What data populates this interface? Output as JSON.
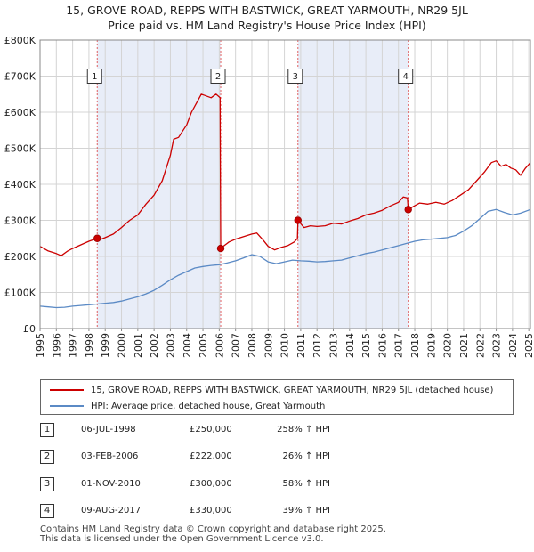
{
  "chart_data": {
    "type": "line",
    "title": "15, GROVE ROAD, REPPS WITH BASTWICK, GREAT YARMOUTH, NR29 5JL",
    "subtitle": "Price paid vs. HM Land Registry's House Price Index (HPI)",
    "xlim": [
      1995.0,
      2025.1
    ],
    "ylim": [
      0,
      800000
    ],
    "x_ticks": [
      1995,
      1996,
      1997,
      1998,
      1999,
      2000,
      2001,
      2002,
      2003,
      2004,
      2005,
      2006,
      2007,
      2008,
      2009,
      2010,
      2011,
      2012,
      2013,
      2014,
      2015,
      2016,
      2017,
      2018,
      2019,
      2020,
      2021,
      2022,
      2023,
      2024,
      2025
    ],
    "x_tick_labels": [
      "1995",
      "1996",
      "1997",
      "1998",
      "1999",
      "2000",
      "2001",
      "2002",
      "2003",
      "2004",
      "2005",
      "2006",
      "2007",
      "2008",
      "2009",
      "2010",
      "2011",
      "2012",
      "2013",
      "2014",
      "2015",
      "2016",
      "2017",
      "2018",
      "2019",
      "2020",
      "2021",
      "2022",
      "2023",
      "2024",
      "2025"
    ],
    "y_ticks": [
      0,
      100000,
      200000,
      300000,
      400000,
      500000,
      600000,
      700000,
      800000
    ],
    "y_tick_labels": [
      "£0",
      "£100K",
      "£200K",
      "£300K",
      "£400K",
      "£500K",
      "£600K",
      "£700K",
      "£800K"
    ],
    "grid": true,
    "shaded_spans": [
      [
        1998.51,
        2006.09
      ],
      [
        2010.83,
        2017.6
      ]
    ],
    "series": [
      {
        "name": "15, GROVE ROAD, REPPS WITH BASTWICK, GREAT YARMOUTH, NR29 5JL (detached house)",
        "color": "#cc0000",
        "points": [
          [
            1995.0,
            228000
          ],
          [
            1995.5,
            215000
          ],
          [
            1996.0,
            208000
          ],
          [
            1996.3,
            202000
          ],
          [
            1996.7,
            215000
          ],
          [
            1997.0,
            222000
          ],
          [
            1997.5,
            232000
          ],
          [
            1998.0,
            242000
          ],
          [
            1998.51,
            250000
          ],
          [
            1998.7,
            247000
          ],
          [
            1999.0,
            252000
          ],
          [
            1999.5,
            262000
          ],
          [
            2000.0,
            280000
          ],
          [
            2000.5,
            300000
          ],
          [
            2001.0,
            315000
          ],
          [
            2001.5,
            345000
          ],
          [
            2002.0,
            370000
          ],
          [
            2002.5,
            410000
          ],
          [
            2003.0,
            480000
          ],
          [
            2003.2,
            525000
          ],
          [
            2003.5,
            530000
          ],
          [
            2004.0,
            565000
          ],
          [
            2004.3,
            600000
          ],
          [
            2004.6,
            625000
          ],
          [
            2004.9,
            650000
          ],
          [
            2005.2,
            645000
          ],
          [
            2005.5,
            640000
          ],
          [
            2005.8,
            650000
          ],
          [
            2006.05,
            640000
          ],
          [
            2006.09,
            222000
          ],
          [
            2006.3,
            230000
          ],
          [
            2006.6,
            240000
          ],
          [
            2007.0,
            248000
          ],
          [
            2007.5,
            255000
          ],
          [
            2008.0,
            262000
          ],
          [
            2008.3,
            265000
          ],
          [
            2008.7,
            245000
          ],
          [
            2009.0,
            228000
          ],
          [
            2009.4,
            218000
          ],
          [
            2009.8,
            225000
          ],
          [
            2010.2,
            230000
          ],
          [
            2010.6,
            240000
          ],
          [
            2010.8,
            250000
          ],
          [
            2010.83,
            300000
          ],
          [
            2011.2,
            280000
          ],
          [
            2011.6,
            285000
          ],
          [
            2012.0,
            283000
          ],
          [
            2012.5,
            285000
          ],
          [
            2013.0,
            292000
          ],
          [
            2013.5,
            290000
          ],
          [
            2014.0,
            298000
          ],
          [
            2014.5,
            305000
          ],
          [
            2015.0,
            315000
          ],
          [
            2015.5,
            320000
          ],
          [
            2016.0,
            328000
          ],
          [
            2016.5,
            340000
          ],
          [
            2017.0,
            350000
          ],
          [
            2017.3,
            365000
          ],
          [
            2017.55,
            362000
          ],
          [
            2017.6,
            330000
          ],
          [
            2017.9,
            338000
          ],
          [
            2018.3,
            348000
          ],
          [
            2018.8,
            345000
          ],
          [
            2019.3,
            350000
          ],
          [
            2019.8,
            345000
          ],
          [
            2020.3,
            355000
          ],
          [
            2020.8,
            370000
          ],
          [
            2021.3,
            385000
          ],
          [
            2021.8,
            410000
          ],
          [
            2022.3,
            435000
          ],
          [
            2022.7,
            460000
          ],
          [
            2023.0,
            465000
          ],
          [
            2023.3,
            450000
          ],
          [
            2023.6,
            455000
          ],
          [
            2023.9,
            445000
          ],
          [
            2024.2,
            440000
          ],
          [
            2024.5,
            425000
          ],
          [
            2024.8,
            445000
          ],
          [
            2025.1,
            460000
          ]
        ]
      },
      {
        "name": "HPI: Average price, detached house, Great Yarmouth",
        "color": "#5b8ac5",
        "points": [
          [
            1995.0,
            62000
          ],
          [
            1995.5,
            60000
          ],
          [
            1996.0,
            58000
          ],
          [
            1996.5,
            59000
          ],
          [
            1997.0,
            62000
          ],
          [
            1997.5,
            64000
          ],
          [
            1998.0,
            66000
          ],
          [
            1998.5,
            68000
          ],
          [
            1999.0,
            70000
          ],
          [
            1999.5,
            72000
          ],
          [
            2000.0,
            76000
          ],
          [
            2000.5,
            82000
          ],
          [
            2001.0,
            88000
          ],
          [
            2001.5,
            96000
          ],
          [
            2002.0,
            106000
          ],
          [
            2002.5,
            120000
          ],
          [
            2003.0,
            135000
          ],
          [
            2003.5,
            148000
          ],
          [
            2004.0,
            158000
          ],
          [
            2004.5,
            168000
          ],
          [
            2005.0,
            172000
          ],
          [
            2005.5,
            175000
          ],
          [
            2006.0,
            177000
          ],
          [
            2006.5,
            182000
          ],
          [
            2007.0,
            188000
          ],
          [
            2007.5,
            196000
          ],
          [
            2008.0,
            205000
          ],
          [
            2008.5,
            200000
          ],
          [
            2009.0,
            185000
          ],
          [
            2009.5,
            180000
          ],
          [
            2010.0,
            185000
          ],
          [
            2010.5,
            190000
          ],
          [
            2011.0,
            188000
          ],
          [
            2011.5,
            187000
          ],
          [
            2012.0,
            185000
          ],
          [
            2012.5,
            186000
          ],
          [
            2013.0,
            188000
          ],
          [
            2013.5,
            190000
          ],
          [
            2014.0,
            196000
          ],
          [
            2014.5,
            202000
          ],
          [
            2015.0,
            208000
          ],
          [
            2015.5,
            212000
          ],
          [
            2016.0,
            218000
          ],
          [
            2016.5,
            224000
          ],
          [
            2017.0,
            230000
          ],
          [
            2017.5,
            236000
          ],
          [
            2018.0,
            242000
          ],
          [
            2018.5,
            246000
          ],
          [
            2019.0,
            248000
          ],
          [
            2019.5,
            250000
          ],
          [
            2020.0,
            252000
          ],
          [
            2020.5,
            258000
          ],
          [
            2021.0,
            270000
          ],
          [
            2021.5,
            285000
          ],
          [
            2022.0,
            305000
          ],
          [
            2022.5,
            325000
          ],
          [
            2023.0,
            330000
          ],
          [
            2023.5,
            322000
          ],
          [
            2024.0,
            315000
          ],
          [
            2024.5,
            320000
          ],
          [
            2025.1,
            330000
          ]
        ]
      }
    ],
    "sales": [
      {
        "label": "1",
        "x": 1998.51,
        "y": 250000
      },
      {
        "label": "2",
        "x": 2006.09,
        "y": 222000
      },
      {
        "label": "3",
        "x": 2010.83,
        "y": 300000
      },
      {
        "label": "4",
        "x": 2017.6,
        "y": 330000
      }
    ],
    "marker_label_value": 700000
  },
  "legend": {
    "items": [
      {
        "label": "15, GROVE ROAD, REPPS WITH BASTWICK, GREAT YARMOUTH, NR29 5JL (detached house)",
        "color": "#cc0000"
      },
      {
        "label": "HPI: Average price, detached house, Great Yarmouth",
        "color": "#5b8ac5"
      }
    ]
  },
  "sales_table": [
    {
      "num": "1",
      "date": "06-JUL-1998",
      "price": "£250,000",
      "hpi": "258% ↑ HPI"
    },
    {
      "num": "2",
      "date": "03-FEB-2006",
      "price": "£222,000",
      "hpi": "26% ↑ HPI"
    },
    {
      "num": "3",
      "date": "01-NOV-2010",
      "price": "£300,000",
      "hpi": "58% ↑ HPI"
    },
    {
      "num": "4",
      "date": "09-AUG-2017",
      "price": "£330,000",
      "hpi": "39% ↑ HPI"
    }
  ],
  "footer": {
    "line1": "Contains HM Land Registry data © Crown copyright and database right 2025.",
    "line2": "This data is licensed under the Open Government Licence v3.0."
  }
}
